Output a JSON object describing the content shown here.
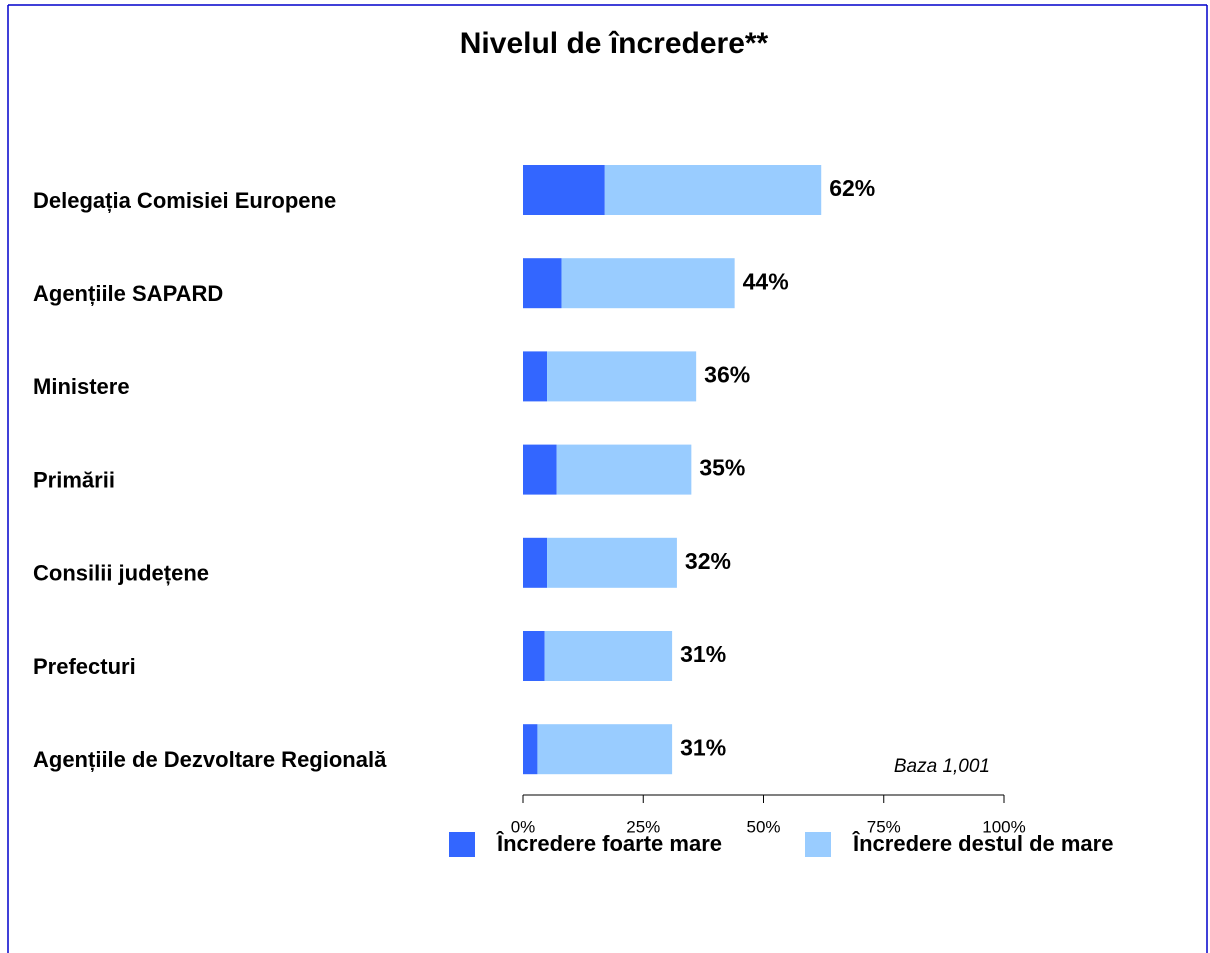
{
  "chart_data": {
    "type": "stacked-barh",
    "title": "Nivelul de încredere**",
    "categories": [
      "Delegația Comisiei Europene",
      "Agențiile SAPARD",
      "Ministere",
      "Primării",
      "Consilii județene",
      "Prefecturi",
      "Agențiile de Dezvoltare Regională"
    ],
    "series": [
      {
        "name": "Încredere foarte mare",
        "color": "#3366ff",
        "values": [
          17,
          8,
          5,
          7,
          5,
          4.5,
          3
        ]
      },
      {
        "name": "Încredere destul de mare",
        "color": "#99ccff",
        "values": [
          45,
          36,
          31,
          28,
          27,
          26.5,
          28
        ]
      }
    ],
    "totals": [
      62,
      44,
      36,
      35,
      32,
      31,
      31
    ],
    "total_labels": [
      "62%",
      "44%",
      "36%",
      "35%",
      "32%",
      "31%",
      "31%"
    ],
    "xlim": [
      0,
      100
    ],
    "xticks": [
      {
        "value": 0,
        "label": "0%"
      },
      {
        "value": 25,
        "label": "25%"
      },
      {
        "value": 50,
        "label": "50%"
      },
      {
        "value": 75,
        "label": "75%"
      },
      {
        "value": 100,
        "label": "100%"
      }
    ],
    "annotation": "Baza 1,001",
    "legend": "bottom"
  }
}
